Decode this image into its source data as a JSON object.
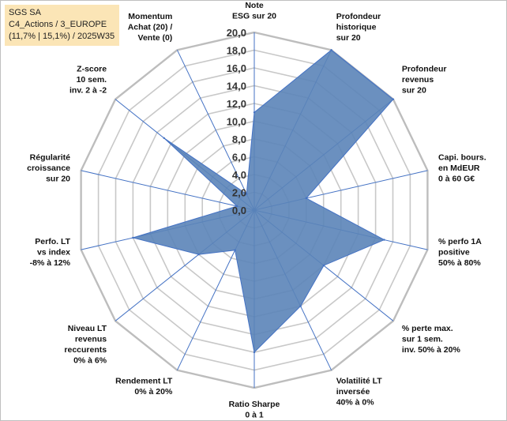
{
  "title_lines": [
    "SGS SA",
    "C4_Actions / 3_EUROPE",
    "(11,7% | 15,1%) / 2025W35"
  ],
  "colors": {
    "fill": "#5b84b8",
    "stroke": "#4472c4",
    "grid": "#c8c8c8",
    "title_bg": "#fbe5b6"
  },
  "chart_data": {
    "type": "radar",
    "title": "",
    "r_range": [
      0,
      20
    ],
    "r_ticks": [
      "0,0",
      "2,0",
      "4,0",
      "6,0",
      "8,0",
      "10,0",
      "12,0",
      "14,0",
      "16,0",
      "18,0",
      "20,0"
    ],
    "grid": true,
    "categories": [
      [
        "Note",
        "ESG sur 20"
      ],
      [
        "Profondeur",
        "historique",
        "sur 20"
      ],
      [
        "Profondeur",
        "revenus",
        "sur 20"
      ],
      [
        "Capi. bours.",
        "en MdEUR",
        "0 à 60 G€"
      ],
      [
        "% perfo 1A",
        "positive",
        "50% à 80%"
      ],
      [
        "% perte max.",
        "sur 1 sem.",
        "inv. 50% à 20%"
      ],
      [
        "Volatilité LT",
        "inversée",
        "40% à 0%"
      ],
      [
        "Ratio Sharpe",
        "0 à 1"
      ],
      [
        "Rendement LT",
        "0% à 20%"
      ],
      [
        "Niveau LT",
        "revenus",
        "reccurents",
        "0% à 6%"
      ],
      [
        "Perfo. LT",
        "vs index",
        "-8% à 12%"
      ],
      [
        "Régularité",
        "croissance",
        "sur 20"
      ],
      [
        "Z-score",
        "10 sem.",
        "inv. 2 à -2"
      ],
      [
        "Momentum",
        "Achat (20) /",
        "Vente (0)"
      ]
    ],
    "values": [
      11,
      20,
      20,
      6,
      15,
      10,
      12,
      16,
      5,
      8,
      14,
      2,
      13,
      2
    ]
  }
}
